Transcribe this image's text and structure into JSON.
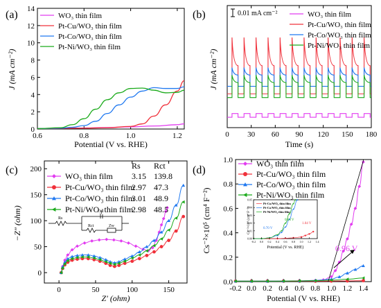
{
  "colors": {
    "WO3": "#e23bf0",
    "PtCu": "#f0303a",
    "PtCo": "#1f78f0",
    "PtNi": "#1aaa1a",
    "annotation_green": "#1aaa1a",
    "annotation_blue": "#1f78f0",
    "annotation_red": "#f0303a",
    "annotation_magenta": "#e23bf0"
  },
  "panels": {
    "a": {
      "label": "(a)",
      "xlabel": "Potential (V vs. RHE)",
      "ylabel": "J (mA cm⁻²)",
      "legend": [
        "WO₃ thin film",
        "Pt-Cu/WO₃ thin film",
        "Pt-Co/WO₃ thin film",
        "Pt-Ni/WO₃ thin film"
      ]
    },
    "b": {
      "label": "(b)",
      "xlabel": "Time (s)",
      "ylabel": "J (mA cm⁻²)",
      "scale_bar": "0.01 mA cm⁻²",
      "legend": [
        "WO₃ thin film",
        "Pt-Cu/WO₃ thin film",
        "Pt-Co/WO₃ thin film",
        "Pt-Ni/WO₃ thin film"
      ]
    },
    "c": {
      "label": "(c)",
      "xlabel": "Z′ (ohm)",
      "ylabel": "−Z″ (ohm)",
      "table_headers": [
        "Rs",
        "Rct"
      ],
      "legend": [
        "WO₃ thin film",
        "Pt-Cu/WO₃ thin film",
        "Pt-Co/WO₃ thin film",
        "Pt-Ni/WO₃ thin film"
      ],
      "rs": [
        "3.15",
        "2.97",
        "3.01",
        "2.98"
      ],
      "rct": [
        "139.8",
        "47.3",
        "48.9",
        "48.5"
      ],
      "circuit_labels": [
        "Rs",
        "Cdl",
        "Rct",
        "Zw"
      ]
    },
    "d": {
      "label": "(d)",
      "xlabel": "Potential (V vs. RHE)",
      "ylabel": "Cs⁻²×10⁵ (cm⁴ F⁻²)",
      "legend": [
        "WO₃ thin film",
        "Pt-Cu/WO₃ thin film",
        "Pt-Co/WO₃ thin film",
        "Pt-Ni/WO₃ thin film"
      ],
      "annotation": "0.96 V",
      "inset": {
        "ylabel": "Cs⁻²×10⁵ (cm⁴ F⁻²)",
        "xlabel": "Potential (V vs. RHE)",
        "legend": [
          "Pt-Cu/WO₃ thin film",
          "Pt-Co/WO₃ thin film",
          "Pt-Ni/WO₃ thin film"
        ],
        "annotations": [
          "0.64 V",
          "0.70 V",
          "1.04 V"
        ]
      }
    }
  },
  "chart_data": [
    {
      "panel": "a",
      "type": "line",
      "xlabel": "Potential (V vs. RHE)",
      "ylabel": "J (mA cm⁻²)",
      "xlim": [
        0.6,
        1.23
      ],
      "ylim": [
        0,
        14
      ],
      "xticks": [
        0.6,
        0.8,
        1.0,
        1.2
      ],
      "yticks": [
        0,
        2,
        4,
        6,
        8,
        10,
        12,
        14
      ],
      "series": [
        {
          "name": "WO₃ thin film",
          "x": [
            0.6,
            0.7,
            0.8,
            0.9,
            1.0,
            1.1,
            1.2,
            1.23
          ],
          "y": [
            0.05,
            0.08,
            0.12,
            0.18,
            0.25,
            0.35,
            0.5,
            0.6
          ]
        },
        {
          "name": "Pt-Cu/WO₃ thin film",
          "x": [
            0.6,
            0.7,
            0.8,
            0.9,
            1.0,
            1.05,
            1.1,
            1.15,
            1.2,
            1.23
          ],
          "y": [
            0.05,
            0.08,
            0.1,
            0.15,
            0.3,
            0.6,
            1.5,
            2.8,
            4.4,
            5.6
          ]
        },
        {
          "name": "Pt-Co/WO₃ thin film",
          "x": [
            0.6,
            0.7,
            0.75,
            0.8,
            0.85,
            0.9,
            0.95,
            1.0,
            1.05,
            1.1,
            1.15,
            1.2,
            1.23
          ],
          "y": [
            0.05,
            0.1,
            0.2,
            0.4,
            0.9,
            1.8,
            2.8,
            3.7,
            4.4,
            4.8,
            4.7,
            4.7,
            4.9
          ]
        },
        {
          "name": "Pt-Ni/WO₃ thin film",
          "x": [
            0.6,
            0.7,
            0.75,
            0.8,
            0.85,
            0.9,
            0.95,
            1.0,
            1.05,
            1.1,
            1.15,
            1.2,
            1.23
          ],
          "y": [
            0.05,
            0.15,
            0.5,
            1.2,
            2.3,
            3.4,
            4.2,
            4.7,
            4.75,
            4.5,
            4.2,
            4.25,
            4.5
          ]
        }
      ]
    },
    {
      "panel": "b",
      "type": "line",
      "xlabel": "Time (s)",
      "ylabel": "J (mA cm⁻²)",
      "xlim": [
        0,
        180
      ],
      "xticks": [
        0,
        30,
        60,
        90,
        120,
        150,
        180
      ],
      "chopped_light": {
        "period_s": 15,
        "on_s": 7.5,
        "cycles": 12
      },
      "series": [
        {
          "name": "WO₃ thin film",
          "dark": 0.0055,
          "light_peak": 0.0075,
          "light_end": 0.0075
        },
        {
          "name": "Pt-Cu/WO₃ thin film",
          "dark": 0.018,
          "light_peak": 0.048,
          "light_end": 0.033
        },
        {
          "name": "Pt-Co/WO₃ thin film",
          "dark": 0.022,
          "light_peak": 0.032,
          "light_end": 0.028
        },
        {
          "name": "Pt-Ni/WO₃ thin film",
          "dark": 0.016,
          "light_peak": 0.028,
          "light_end": 0.024
        }
      ]
    },
    {
      "panel": "c",
      "type": "scatter",
      "xlabel": "Z′ (ohm)",
      "ylabel": "−Z″ (ohm)",
      "xlim": [
        -20,
        175
      ],
      "ylim": [
        -20,
        215
      ],
      "xticks": [
        0,
        50,
        100,
        150
      ],
      "yticks": [
        0,
        50,
        100,
        150,
        200
      ],
      "series": [
        {
          "name": "WO₃ thin film",
          "x": [
            3,
            5,
            8,
            12,
            18,
            25,
            35,
            45,
            55,
            65,
            75,
            85,
            95,
            105,
            115,
            122,
            128,
            133,
            137,
            140,
            143,
            146,
            148
          ],
          "y": [
            0,
            12,
            24,
            34,
            44,
            51,
            57,
            61,
            63,
            64,
            63,
            61,
            57,
            51,
            45,
            42,
            48,
            62,
            78,
            92,
            104,
            118,
            125
          ]
        },
        {
          "name": "Pt-Cu/WO₃ thin film",
          "x": [
            3,
            5,
            8,
            12,
            18,
            25,
            32,
            40,
            48,
            56,
            64,
            70,
            76,
            82,
            90,
            100,
            110,
            120,
            130,
            140,
            150,
            160,
            170
          ],
          "y": [
            0,
            8,
            15,
            20,
            24,
            26,
            27,
            27,
            25,
            22,
            18,
            14,
            12,
            14,
            18,
            22,
            27,
            33,
            40,
            50,
            62,
            80,
            108
          ]
        },
        {
          "name": "Pt-Co/WO₃ thin film",
          "x": [
            3,
            5,
            8,
            12,
            18,
            25,
            32,
            40,
            48,
            56,
            64,
            70,
            76,
            82,
            90,
            100,
            110,
            120,
            130,
            140,
            150,
            160,
            170
          ],
          "y": [
            0,
            11,
            20,
            27,
            31,
            33,
            34,
            34,
            32,
            29,
            25,
            21,
            19,
            21,
            26,
            32,
            40,
            50,
            62,
            78,
            100,
            130,
            168
          ]
        },
        {
          "name": "Pt-Ni/WO₃ thin film",
          "x": [
            3,
            5,
            8,
            12,
            18,
            25,
            32,
            40,
            48,
            56,
            64,
            70,
            76,
            82,
            90,
            100,
            110,
            120,
            130,
            140,
            150,
            160,
            170
          ],
          "y": [
            0,
            9,
            17,
            23,
            27,
            29,
            30,
            30,
            28,
            25,
            21,
            18,
            16,
            18,
            22,
            28,
            34,
            42,
            52,
            65,
            82,
            105,
            136
          ]
        }
      ]
    },
    {
      "panel": "d",
      "type": "scatter",
      "xlabel": "Potential (V vs. RHE)",
      "ylabel": "Cs⁻²×10⁵ (cm⁴ F⁻²)",
      "xlim": [
        -0.2,
        1.5
      ],
      "ylim": [
        0,
        1.0
      ],
      "xticks": [
        -0.2,
        0.0,
        0.2,
        0.4,
        0.6,
        0.8,
        1.0,
        1.2,
        1.4
      ],
      "yticks": [
        0.0,
        0.2,
        0.4,
        0.6,
        0.8,
        1.0
      ],
      "series": [
        {
          "name": "WO₃ thin film",
          "x": [
            -0.2,
            0,
            0.2,
            0.4,
            0.6,
            0.8,
            0.9,
            1.0,
            1.05,
            1.1,
            1.15,
            1.2,
            1.25,
            1.3,
            1.35,
            1.4
          ],
          "y": [
            0.005,
            0.005,
            0.006,
            0.006,
            0.007,
            0.01,
            0.015,
            0.04,
            0.09,
            0.16,
            0.25,
            0.35,
            0.47,
            0.6,
            0.78,
            0.98
          ]
        },
        {
          "name": "Pt-Cu/WO₃ thin film",
          "x": [
            -0.2,
            0,
            0.2,
            0.4,
            0.6,
            0.8,
            1.0,
            1.2,
            1.4
          ],
          "y": [
            0.004,
            0.004,
            0.004,
            0.004,
            0.004,
            0.004,
            0.005,
            0.006,
            0.008
          ]
        },
        {
          "name": "Pt-Co/WO₃ thin film",
          "x": [
            -0.2,
            0,
            0.2,
            0.4,
            0.6,
            0.8,
            1.0,
            1.1,
            1.2,
            1.3,
            1.4
          ],
          "y": [
            0.004,
            0.004,
            0.004,
            0.005,
            0.006,
            0.01,
            0.02,
            0.04,
            0.07,
            0.1,
            0.13
          ]
        },
        {
          "name": "Pt-Ni/WO₃ thin film",
          "x": [
            -0.2,
            0,
            0.2,
            0.4,
            0.6,
            0.8,
            1.0,
            1.2,
            1.4
          ],
          "y": [
            0.004,
            0.004,
            0.004,
            0.005,
            0.006,
            0.008,
            0.012,
            0.02,
            0.03
          ]
        }
      ],
      "annotation": {
        "text": "0.96 V",
        "x": 0.96
      }
    }
  ]
}
